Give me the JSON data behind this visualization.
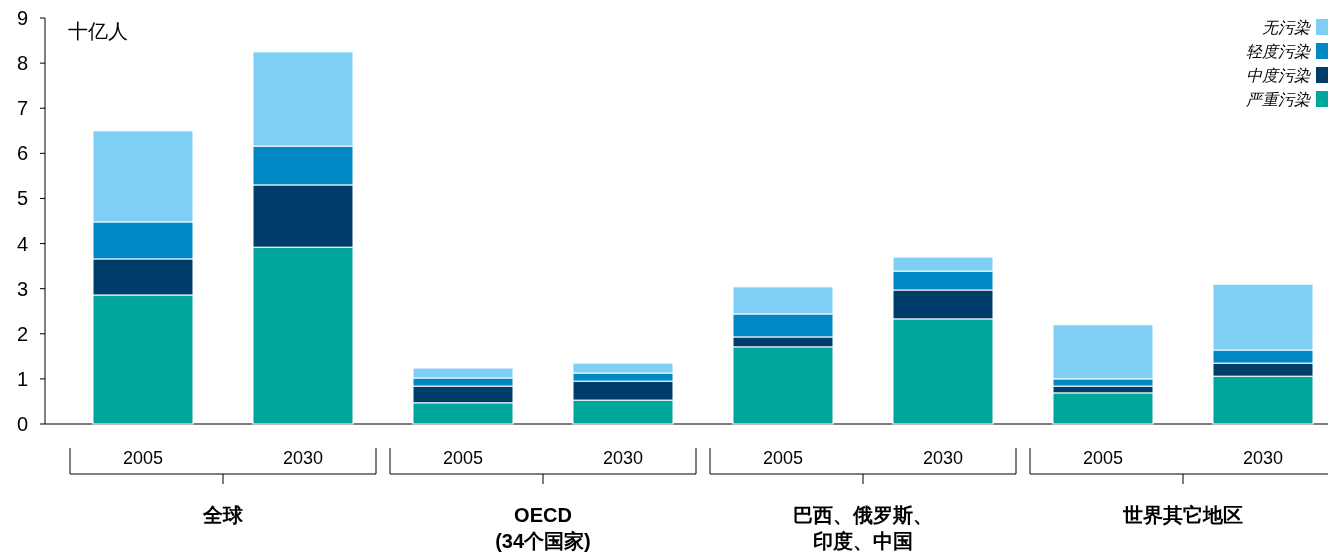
{
  "chart_data": {
    "type": "bar",
    "stacked": true,
    "ylabel": "十亿人",
    "categories": [
      "2005",
      "2030",
      "2005",
      "2030",
      "2005",
      "2030",
      "2005",
      "2030"
    ],
    "series": [
      {
        "name": "严重污染",
        "color": "#00a69c",
        "values": [
          2.86,
          3.92,
          0.47,
          0.53,
          1.71,
          2.33,
          0.69,
          1.06
        ]
      },
      {
        "name": "中度污染",
        "color": "#003d6b",
        "values": [
          0.8,
          1.38,
          0.37,
          0.42,
          0.22,
          0.64,
          0.15,
          0.29
        ]
      },
      {
        "name": "轻度污染",
        "color": "#0088c4",
        "values": [
          0.82,
          0.86,
          0.18,
          0.18,
          0.51,
          0.42,
          0.16,
          0.29
        ]
      },
      {
        "name": "无污染",
        "color": "#7fcff5",
        "values": [
          2.02,
          2.09,
          0.22,
          0.22,
          0.6,
          0.31,
          1.2,
          1.46
        ]
      }
    ],
    "ylim": [
      0,
      9
    ],
    "yticks": [
      0,
      1,
      2,
      3,
      4,
      5,
      6,
      7,
      8,
      9
    ],
    "legend": "top right",
    "annotations": [
      "全球",
      "OECD (34个国家)",
      "巴西、俄罗斯、印度、中国",
      "世界其它地区"
    ]
  }
}
